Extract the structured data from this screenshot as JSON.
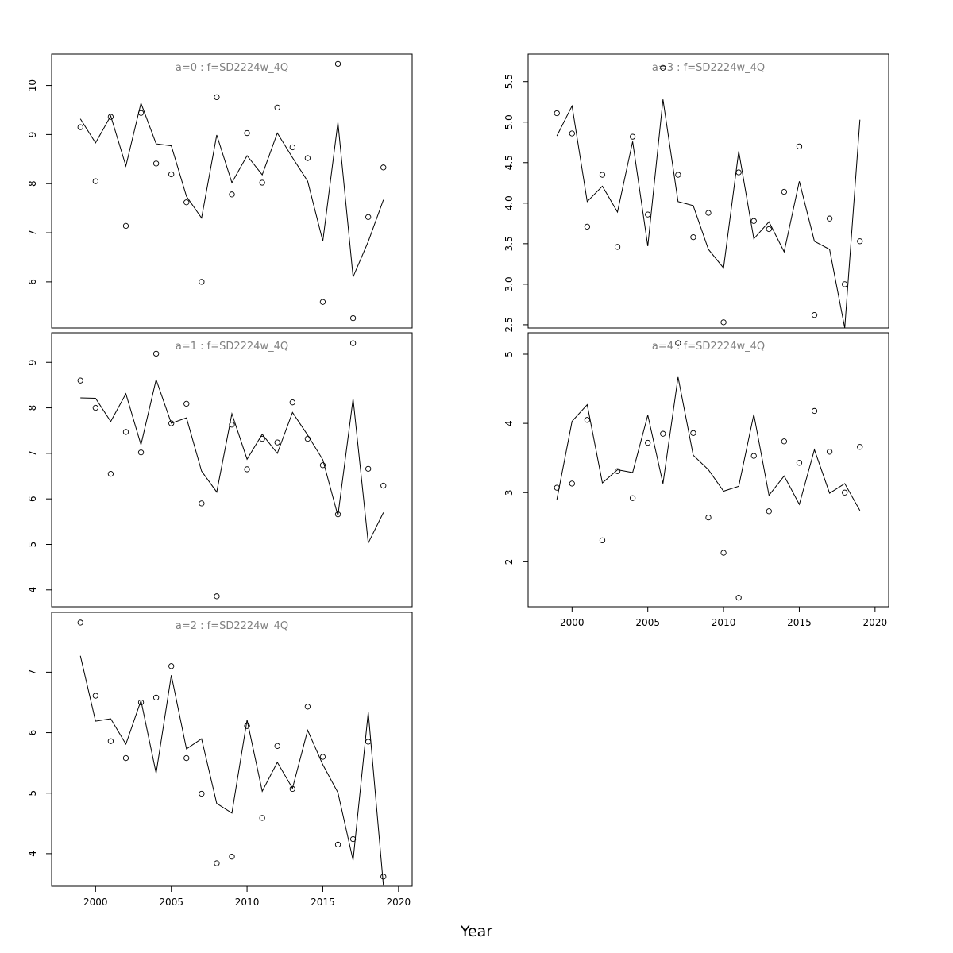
{
  "figure": {
    "xlabel": "Year"
  },
  "chart_data": [
    {
      "type": "line",
      "title": "a=0 : f=SD2224w_4Q",
      "x": [
        1999,
        2000,
        2001,
        2002,
        2003,
        2004,
        2005,
        2006,
        2007,
        2008,
        2009,
        2010,
        2011,
        2012,
        2013,
        2014,
        2015,
        2016,
        2017,
        2018,
        2019
      ],
      "series": [
        {
          "kind": "points",
          "values": [
            9.15,
            8.05,
            9.36,
            7.14,
            9.44,
            8.41,
            8.19,
            7.62,
            6.0,
            9.76,
            7.78,
            9.03,
            8.02,
            9.55,
            8.74,
            8.52,
            5.59,
            10.44,
            5.26,
            7.32,
            8.33
          ]
        },
        {
          "kind": "line",
          "values": [
            9.32,
            8.83,
            9.38,
            8.36,
            9.64,
            8.81,
            8.77,
            7.74,
            7.3,
            8.99,
            8.02,
            8.57,
            8.18,
            9.03,
            8.53,
            8.05,
            6.83,
            9.25,
            6.1,
            6.82,
            7.67
          ]
        }
      ],
      "xlim": [
        1997.1,
        2020.9
      ],
      "ylim": [
        5.06,
        10.64
      ],
      "xticks": [
        2000,
        2005,
        2010,
        2015,
        2020
      ],
      "yticks": [
        6,
        7,
        8,
        9,
        10
      ],
      "show_xaxis": false
    },
    {
      "type": "line",
      "title": "a=1 : f=SD2224w_4Q",
      "x": [
        1999,
        2000,
        2001,
        2002,
        2003,
        2004,
        2005,
        2006,
        2007,
        2008,
        2009,
        2010,
        2011,
        2012,
        2013,
        2014,
        2015,
        2016,
        2017,
        2018,
        2019
      ],
      "series": [
        {
          "kind": "points",
          "values": [
            8.6,
            8.0,
            6.55,
            7.47,
            7.02,
            9.19,
            7.66,
            8.09,
            5.9,
            3.86,
            7.63,
            6.65,
            7.32,
            7.24,
            8.12,
            7.32,
            6.74,
            5.66,
            9.42,
            6.66,
            6.29
          ]
        },
        {
          "kind": "line",
          "values": [
            8.22,
            8.21,
            7.7,
            8.31,
            7.19,
            8.62,
            7.66,
            7.78,
            6.61,
            6.15,
            7.87,
            6.87,
            7.42,
            7.0,
            7.9,
            7.4,
            6.86,
            5.63,
            8.2,
            5.03,
            5.7
          ]
        }
      ],
      "xlim": [
        1997.1,
        2020.9
      ],
      "ylim": [
        3.63,
        9.65
      ],
      "xticks": [
        2000,
        2005,
        2010,
        2015,
        2020
      ],
      "yticks": [
        4,
        5,
        6,
        7,
        8,
        9
      ],
      "show_xaxis": false
    },
    {
      "type": "line",
      "title": "a=2 : f=SD2224w_4Q",
      "x": [
        1999,
        2000,
        2001,
        2002,
        2003,
        2004,
        2005,
        2006,
        2007,
        2008,
        2009,
        2010,
        2011,
        2012,
        2013,
        2014,
        2015,
        2016,
        2017,
        2018,
        2019
      ],
      "series": [
        {
          "kind": "points",
          "values": [
            7.82,
            6.61,
            5.86,
            5.58,
            6.5,
            6.58,
            7.1,
            5.58,
            4.99,
            3.84,
            3.95,
            6.11,
            4.59,
            5.78,
            5.07,
            6.43,
            5.6,
            4.15,
            4.24,
            5.85,
            3.62
          ]
        },
        {
          "kind": "line",
          "values": [
            7.27,
            6.19,
            6.23,
            5.81,
            6.53,
            5.33,
            6.95,
            5.73,
            5.9,
            4.83,
            4.67,
            6.21,
            5.03,
            5.51,
            5.08,
            6.04,
            5.47,
            5.01,
            3.89,
            6.34,
            3.47
          ]
        }
      ],
      "xlim": [
        1997.1,
        2020.9
      ],
      "ylim": [
        3.46,
        7.99
      ],
      "xticks": [
        2000,
        2005,
        2010,
        2015,
        2020
      ],
      "yticks": [
        4,
        5,
        6,
        7
      ],
      "show_xaxis": true
    },
    {
      "type": "line",
      "title": "a=3 : f=SD2224w_4Q",
      "x": [
        1999,
        2000,
        2001,
        2002,
        2003,
        2004,
        2005,
        2006,
        2007,
        2008,
        2009,
        2010,
        2011,
        2012,
        2013,
        2014,
        2015,
        2016,
        2017,
        2018,
        2019
      ],
      "series": [
        {
          "kind": "points",
          "values": [
            5.11,
            4.86,
            3.71,
            4.35,
            3.46,
            4.82,
            3.86,
            5.67,
            4.35,
            3.58,
            3.88,
            2.53,
            4.38,
            3.78,
            3.68,
            4.14,
            4.7,
            2.62,
            3.81,
            3.0,
            3.53
          ]
        },
        {
          "kind": "line",
          "values": [
            4.83,
            5.2,
            4.02,
            4.21,
            3.89,
            4.76,
            3.47,
            5.28,
            4.02,
            3.97,
            3.43,
            3.2,
            4.64,
            3.56,
            3.77,
            3.4,
            4.27,
            3.53,
            3.43,
            2.46,
            5.03
          ]
        }
      ],
      "xlim": [
        1997.1,
        2020.9
      ],
      "ylim": [
        2.46,
        5.84
      ],
      "xticks": [
        2000,
        2005,
        2010,
        2015,
        2020
      ],
      "yticks": [
        2.5,
        3.0,
        3.5,
        4.0,
        4.5,
        5.0,
        5.5
      ],
      "show_xaxis": false
    },
    {
      "type": "line",
      "title": "a=4 : f=SD2224w_4Q",
      "x": [
        1999,
        2000,
        2001,
        2002,
        2003,
        2004,
        2005,
        2006,
        2007,
        2008,
        2009,
        2010,
        2011,
        2012,
        2013,
        2014,
        2015,
        2016,
        2017,
        2018,
        2019
      ],
      "series": [
        {
          "kind": "points",
          "values": [
            3.07,
            3.13,
            4.05,
            2.31,
            3.31,
            2.92,
            3.72,
            3.85,
            5.16,
            3.86,
            2.64,
            2.13,
            1.48,
            3.53,
            2.73,
            3.74,
            3.43,
            4.18,
            3.59,
            3.0,
            3.66
          ]
        },
        {
          "kind": "line",
          "values": [
            2.9,
            4.03,
            4.27,
            3.14,
            3.33,
            3.29,
            4.12,
            3.13,
            4.67,
            3.54,
            3.33,
            3.02,
            3.09,
            4.13,
            2.96,
            3.24,
            2.83,
            3.62,
            2.99,
            3.13,
            2.74
          ]
        }
      ],
      "xlim": [
        1997.1,
        2020.9
      ],
      "ylim": [
        1.35,
        5.31
      ],
      "xticks": [
        2000,
        2005,
        2010,
        2015,
        2020
      ],
      "yticks": [
        2,
        3,
        4,
        5
      ],
      "show_xaxis": true
    }
  ]
}
